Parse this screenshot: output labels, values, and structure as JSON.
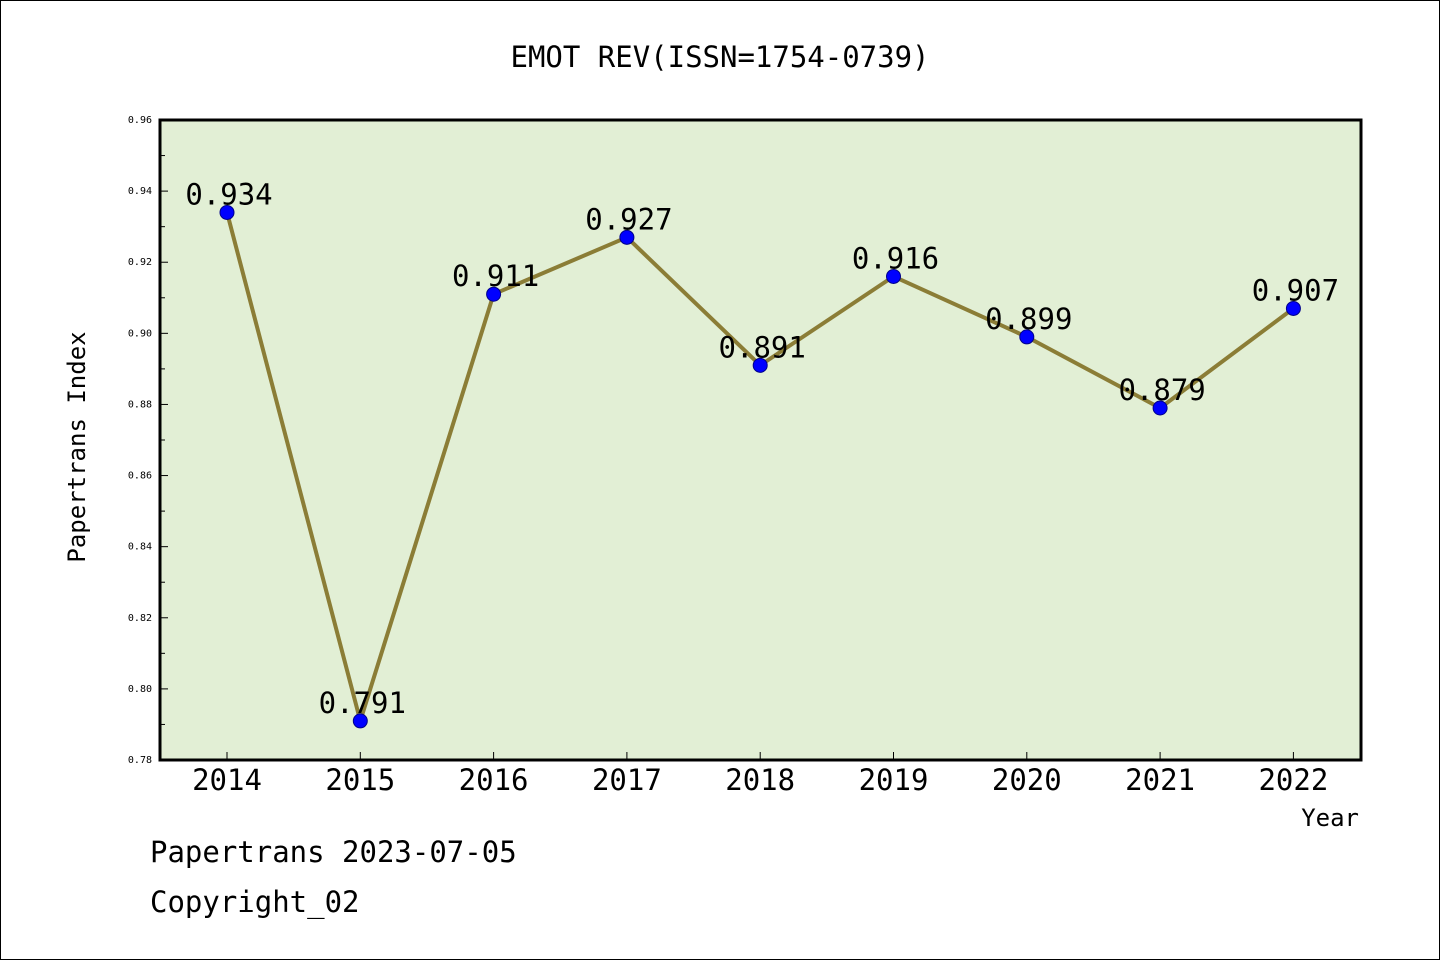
{
  "chart_data": {
    "type": "line",
    "title": "EMOT REV(ISSN=1754-0739)",
    "xlabel": "Year",
    "ylabel": "Papertrans Index",
    "categories": [
      "2014",
      "2015",
      "2016",
      "2017",
      "2018",
      "2019",
      "2020",
      "2021",
      "2022"
    ],
    "series": [
      {
        "values": [
          0.934,
          0.791,
          0.911,
          0.927,
          0.891,
          0.916,
          0.899,
          0.879,
          0.907
        ]
      }
    ],
    "data_labels": [
      "0.934",
      "0.791",
      "0.911",
      "0.927",
      "0.891",
      "0.916",
      "0.899",
      "0.879",
      "0.907"
    ],
    "ylim": [
      0.78,
      0.96
    ],
    "yticks": [
      "0.78",
      "0.80",
      "0.82",
      "0.84",
      "0.86",
      "0.88",
      "0.90",
      "0.92",
      "0.94",
      "0.96"
    ],
    "grid": false,
    "colors": {
      "plot_background": "#e2efd5",
      "line": "#8b7d36",
      "marker": "#0000ff"
    }
  },
  "footer": {
    "date_text": "Papertrans 2023-07-05",
    "copyright_text": "Copyright_02"
  }
}
